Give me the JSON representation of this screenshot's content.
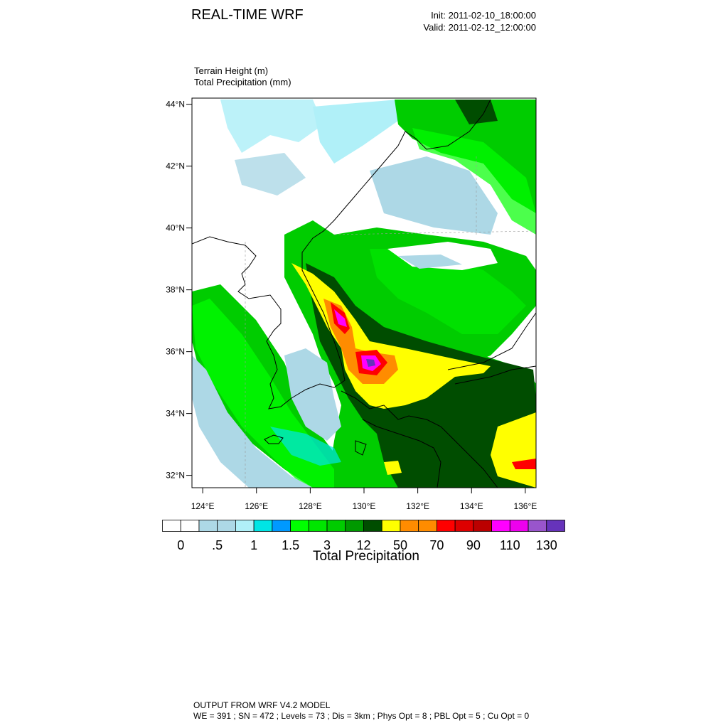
{
  "header": {
    "title": "REAL-TIME WRF",
    "init": "Init: 2011-02-10_18:00:00",
    "valid": "Valid: 2011-02-12_12:00:00"
  },
  "fields": {
    "line1": "Terrain Height   (m)",
    "line2": "Total Precipitation   (mm)"
  },
  "map": {
    "lon_range": [
      123.6,
      136.4
    ],
    "lat_range": [
      31.6,
      44.2
    ],
    "lat_ticks": [
      {
        "value": 32,
        "label": "32°N"
      },
      {
        "value": 34,
        "label": "34°N"
      },
      {
        "value": 36,
        "label": "36°N"
      },
      {
        "value": 38,
        "label": "38°N"
      },
      {
        "value": 40,
        "label": "40°N"
      },
      {
        "value": 42,
        "label": "42°N"
      },
      {
        "value": 44,
        "label": "44°N"
      }
    ],
    "lon_ticks": [
      {
        "value": 124,
        "label": "124°E"
      },
      {
        "value": 126,
        "label": "126°E"
      },
      {
        "value": 128,
        "label": "128°E"
      },
      {
        "value": 130,
        "label": "130°E"
      },
      {
        "value": 132,
        "label": "132°E"
      },
      {
        "value": 134,
        "label": "134°E"
      },
      {
        "value": 136,
        "label": "136°E"
      }
    ]
  },
  "colorbar": {
    "label": "Total Precipitation",
    "colors": [
      "#ffffff",
      "#ffffff",
      "#add8e6",
      "#add8e6",
      "#b0f0f8",
      "#00e5e5",
      "#0099ff",
      "#00ff00",
      "#00e600",
      "#00cc00",
      "#009900",
      "#004d00",
      "#ffff00",
      "#ff8c00",
      "#ff8c00",
      "#ff0000",
      "#dd0000",
      "#bb0000",
      "#ff00ff",
      "#ee00ee",
      "#9955cc",
      "#6633bb"
    ],
    "labels": [
      "0",
      ".5",
      "1",
      "1.5",
      "3",
      "12",
      "50",
      "70",
      "90",
      "110",
      "130"
    ]
  },
  "footer": {
    "line1": "OUTPUT FROM WRF V4.2 MODEL",
    "line2": "WE = 391 ; SN = 472 ; Levels = 73 ; Dis = 3km ; Phys Opt = 8 ; PBL Opt = 5 ; Cu Opt = 0"
  }
}
